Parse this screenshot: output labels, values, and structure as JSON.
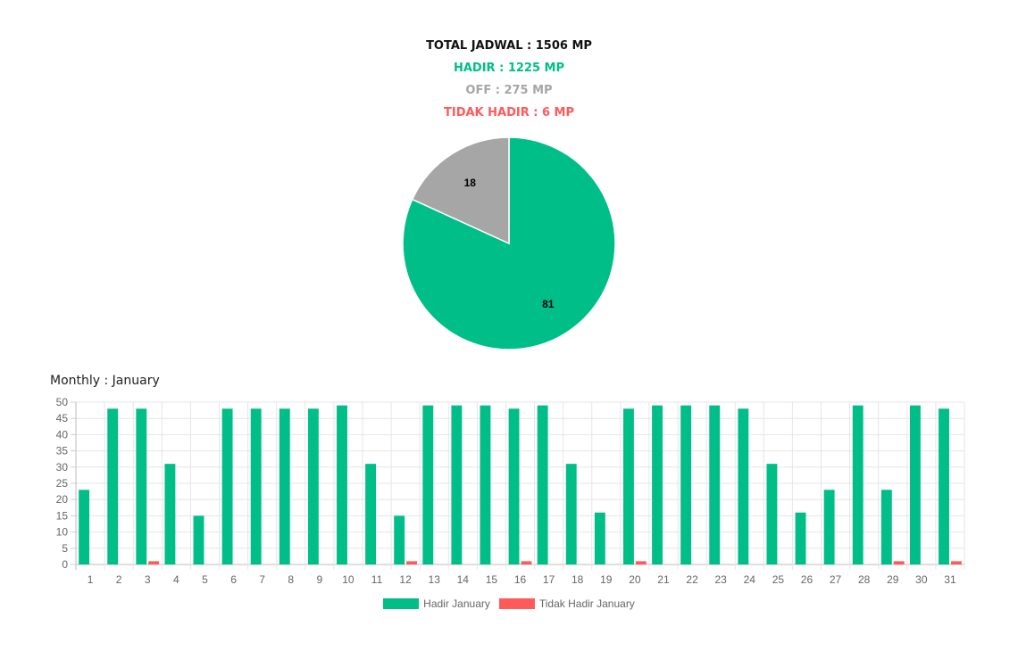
{
  "summary": {
    "total": "TOTAL JADWAL : 1506 MP",
    "hadir": "HADIR : 1225 MP",
    "off": "OFF : 275 MP",
    "tidak_hadir": "TIDAK HADIR : 6 MP"
  },
  "colors": {
    "hadir": "#00be88",
    "off": "#a6a6a6",
    "tidak_hadir": "#ff5a5a"
  },
  "monthly_title": "Monthly : January",
  "chart_data": [
    {
      "type": "pie",
      "labels": [
        "",
        ""
      ],
      "values": [
        81,
        18
      ],
      "colors": [
        "#00be88",
        "#a6a6a6"
      ]
    },
    {
      "type": "bar",
      "categories": [
        "1",
        "2",
        "3",
        "4",
        "5",
        "6",
        "7",
        "8",
        "9",
        "10",
        "11",
        "12",
        "13",
        "14",
        "15",
        "16",
        "17",
        "18",
        "19",
        "20",
        "21",
        "22",
        "23",
        "24",
        "25",
        "26",
        "27",
        "28",
        "29",
        "30",
        "31"
      ],
      "series": [
        {
          "name": "Hadir January",
          "color": "#00be88",
          "values": [
            23,
            48,
            48,
            31,
            15,
            48,
            48,
            48,
            48,
            49,
            31,
            15,
            49,
            49,
            49,
            48,
            49,
            31,
            16,
            48,
            49,
            49,
            49,
            48,
            31,
            16,
            23,
            49,
            23,
            49,
            48
          ]
        },
        {
          "name": "Tidak Hadir January",
          "color": "#ff5a5a",
          "values": [
            0,
            0,
            1,
            0,
            0,
            0,
            0,
            0,
            0,
            0,
            0,
            1,
            0,
            0,
            0,
            1,
            0,
            0,
            0,
            1,
            0,
            0,
            0,
            0,
            0,
            0,
            0,
            0,
            1,
            0,
            1
          ]
        }
      ],
      "yticks": [
        0,
        5,
        10,
        15,
        20,
        25,
        30,
        35,
        40,
        45,
        50
      ],
      "ylim": [
        0,
        50
      ],
      "legend": "bottom"
    }
  ]
}
